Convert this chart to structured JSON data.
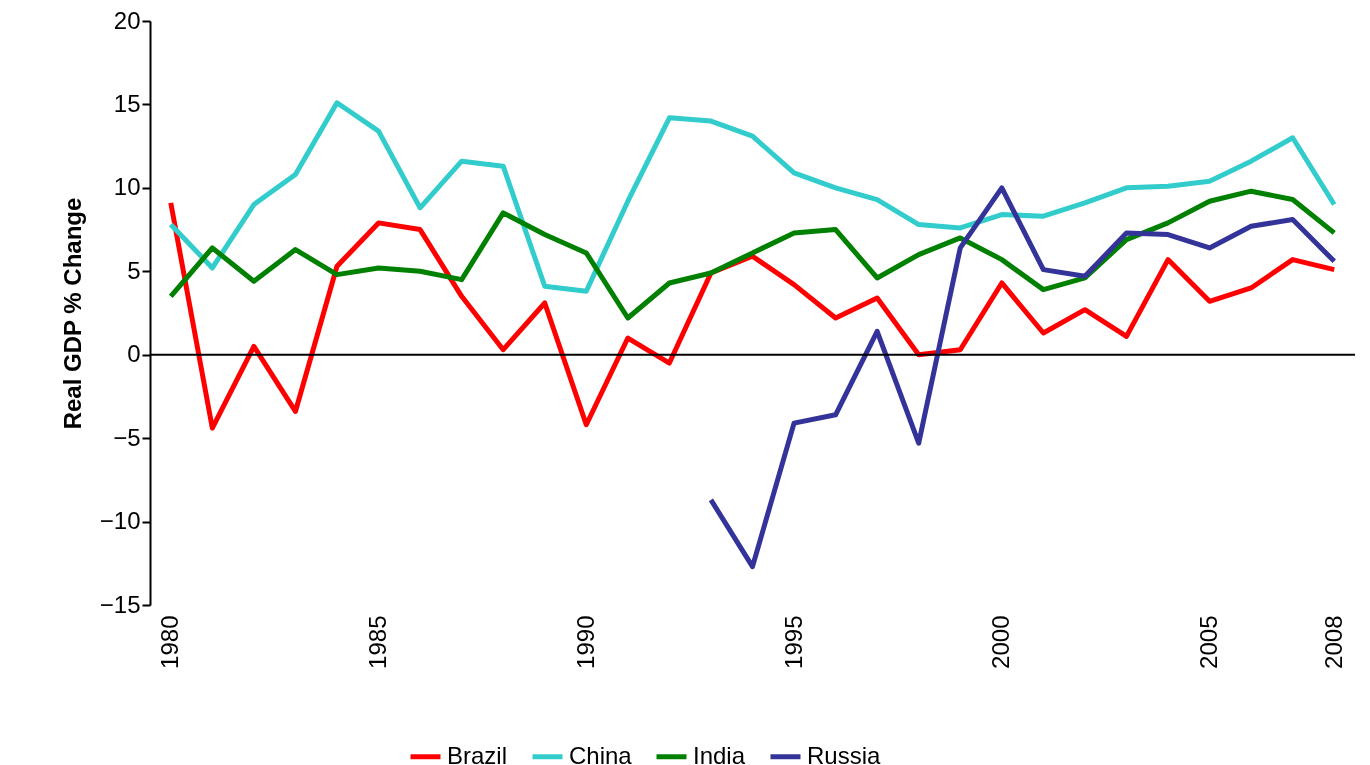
{
  "chart_data": {
    "type": "line",
    "ylabel": "Real GDP % Change",
    "x": [
      1980,
      1981,
      1982,
      1983,
      1984,
      1985,
      1986,
      1987,
      1988,
      1989,
      1990,
      1991,
      1992,
      1993,
      1994,
      1995,
      1996,
      1997,
      1998,
      1999,
      2000,
      2001,
      2002,
      2003,
      2004,
      2005,
      2006,
      2007,
      2008
    ],
    "series": [
      {
        "name": "Brazil",
        "color": "#ff0000",
        "values": [
          9.1,
          -4.4,
          0.5,
          -3.4,
          5.3,
          7.9,
          7.5,
          3.5,
          0.3,
          3.1,
          -4.2,
          1.0,
          -0.5,
          4.9,
          5.9,
          4.2,
          2.2,
          3.4,
          0.0,
          0.3,
          4.3,
          1.3,
          2.7,
          1.1,
          5.7,
          3.2,
          4.0,
          5.7,
          5.1
        ]
      },
      {
        "name": "China",
        "color": "#33cccc",
        "values": [
          7.8,
          5.2,
          9.0,
          10.8,
          15.1,
          13.4,
          8.8,
          11.6,
          11.3,
          4.1,
          3.8,
          9.2,
          14.2,
          14.0,
          13.1,
          10.9,
          10.0,
          9.3,
          7.8,
          7.6,
          8.4,
          8.3,
          9.1,
          10.0,
          10.1,
          10.4,
          11.6,
          13.0,
          9.0
        ]
      },
      {
        "name": "India",
        "color": "#008000",
        "values": [
          3.5,
          6.4,
          4.4,
          6.3,
          4.8,
          5.2,
          5.0,
          4.5,
          8.5,
          7.2,
          6.1,
          2.2,
          4.3,
          4.9,
          6.1,
          7.3,
          7.5,
          4.6,
          6.0,
          7.0,
          5.7,
          3.9,
          4.6,
          6.9,
          7.9,
          9.2,
          9.8,
          9.3,
          7.3
        ]
      },
      {
        "name": "Russia",
        "color": "#333399",
        "values": [
          null,
          null,
          null,
          null,
          null,
          null,
          null,
          null,
          null,
          null,
          null,
          null,
          null,
          -8.7,
          -12.7,
          -4.1,
          -3.6,
          1.4,
          -5.3,
          6.4,
          10.0,
          5.1,
          4.7,
          7.3,
          7.2,
          6.4,
          7.7,
          8.1,
          5.6
        ]
      }
    ],
    "xlim": [
      1979.5,
      2008.5
    ],
    "xticks": [
      1980,
      1985,
      1990,
      1995,
      2000,
      2005,
      2008
    ],
    "ylim": [
      -15,
      20
    ],
    "yticks": [
      -15,
      -10,
      -5,
      0,
      5,
      10,
      15,
      20
    ],
    "ref_lines": [
      {
        "axis": "y",
        "value": 0,
        "color": "#000000"
      }
    ],
    "grid": false,
    "legend": "bottom",
    "marker": "none",
    "line_style": "solid"
  }
}
